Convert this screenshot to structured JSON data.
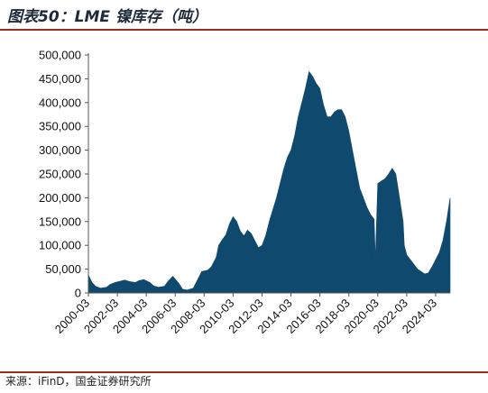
{
  "figure": {
    "title": "图表50：LME 镍库存（吨）",
    "source": "来源：iFinD，国金证券研究所"
  },
  "colors": {
    "area": "#0f4a6e",
    "axis": "#555555",
    "rule": "#9a2b1e"
  },
  "chart_data": {
    "type": "area",
    "title": "",
    "xlabel": "",
    "ylabel": "",
    "ylim": [
      0,
      500000
    ],
    "yticks": [
      0,
      50000,
      100000,
      150000,
      200000,
      250000,
      300000,
      350000,
      400000,
      450000,
      500000
    ],
    "ytick_labels": [
      "0",
      "50,000",
      "100,000",
      "150,000",
      "200,000",
      "250,000",
      "300,000",
      "350,000",
      "400,000",
      "450,000",
      "500,000"
    ],
    "xticks": [
      "2000-03",
      "2002-03",
      "2004-03",
      "2006-03",
      "2008-03",
      "2010-03",
      "2012-03",
      "2014-03",
      "2016-03",
      "2018-03",
      "2020-03",
      "2022-03",
      "2024-03"
    ],
    "grid": false,
    "series": [
      {
        "name": "",
        "x": [
          "2000-03",
          "2000-06",
          "2000-09",
          "2001-01",
          "2001-06",
          "2001-09",
          "2002-01",
          "2002-06",
          "2002-09",
          "2003-01",
          "2003-06",
          "2003-09",
          "2004-01",
          "2004-06",
          "2004-09",
          "2005-01",
          "2005-06",
          "2005-09",
          "2006-01",
          "2006-06",
          "2006-09",
          "2007-01",
          "2007-06",
          "2007-09",
          "2008-01",
          "2008-06",
          "2008-09",
          "2009-01",
          "2009-03",
          "2009-06",
          "2009-09",
          "2009-12",
          "2010-03",
          "2010-06",
          "2010-09",
          "2010-12",
          "2011-03",
          "2011-06",
          "2011-09",
          "2011-12",
          "2012-03",
          "2012-06",
          "2012-09",
          "2012-12",
          "2013-03",
          "2013-06",
          "2013-09",
          "2013-12",
          "2014-03",
          "2014-06",
          "2014-09",
          "2014-12",
          "2015-03",
          "2015-06",
          "2015-09",
          "2015-12",
          "2016-03",
          "2016-06",
          "2016-09",
          "2016-12",
          "2017-03",
          "2017-06",
          "2017-09",
          "2017-12",
          "2018-03",
          "2018-06",
          "2018-09",
          "2018-12",
          "2019-03",
          "2019-06",
          "2019-09",
          "2019-12",
          "2020-01",
          "2020-03",
          "2020-06",
          "2020-09",
          "2020-12",
          "2021-03",
          "2021-06",
          "2021-09",
          "2021-12",
          "2022-01",
          "2022-03",
          "2022-06",
          "2022-09",
          "2022-12",
          "2023-03",
          "2023-06",
          "2023-09",
          "2023-12",
          "2024-03",
          "2024-06",
          "2024-09",
          "2024-12",
          "2025-03"
        ],
        "values": [
          38000,
          22000,
          14000,
          10000,
          12000,
          18000,
          22000,
          25000,
          27000,
          24000,
          22000,
          26000,
          28000,
          22000,
          15000,
          12000,
          14000,
          24000,
          35000,
          20000,
          8000,
          6000,
          10000,
          25000,
          45000,
          48000,
          55000,
          75000,
          100000,
          112000,
          122000,
          145000,
          160000,
          150000,
          130000,
          120000,
          132000,
          125000,
          110000,
          95000,
          100000,
          120000,
          150000,
          175000,
          200000,
          230000,
          260000,
          285000,
          300000,
          330000,
          370000,
          400000,
          430000,
          465000,
          455000,
          440000,
          430000,
          395000,
          370000,
          370000,
          380000,
          385000,
          385000,
          370000,
          340000,
          300000,
          260000,
          220000,
          200000,
          180000,
          165000,
          155000,
          70000,
          230000,
          235000,
          240000,
          250000,
          262000,
          250000,
          200000,
          150000,
          100000,
          80000,
          70000,
          60000,
          50000,
          45000,
          40000,
          42000,
          55000,
          70000,
          85000,
          110000,
          150000,
          200000
        ]
      }
    ]
  }
}
